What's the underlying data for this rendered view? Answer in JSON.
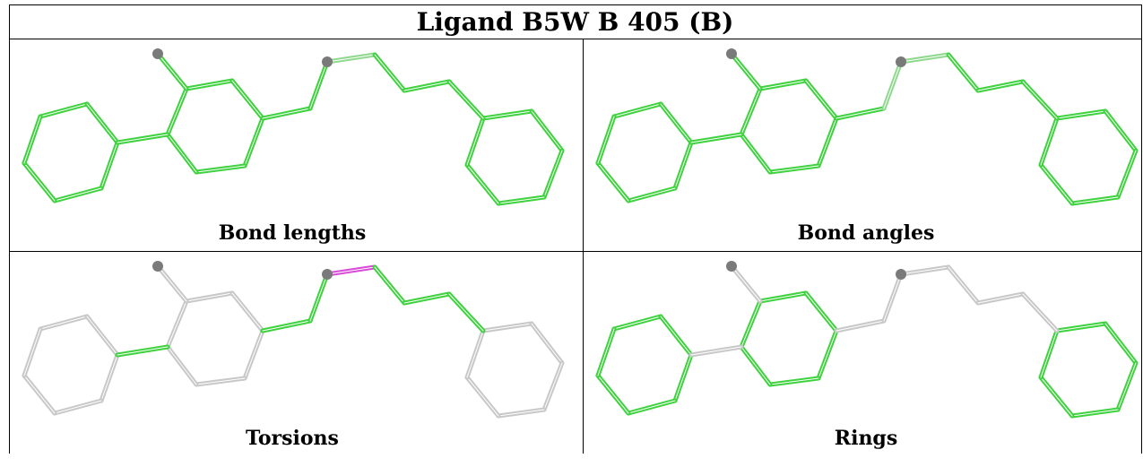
{
  "title": "Ligand B5W B 405 (B)",
  "panels": [
    {
      "caption": "Bond lengths"
    },
    {
      "caption": "Bond angles"
    },
    {
      "caption": "Torsions"
    },
    {
      "caption": "Rings"
    }
  ],
  "colors": {
    "green": "#3fd23f",
    "gray": "#c8c8c8",
    "magenta": "#d94ad9",
    "atom": "#7a7a7a"
  }
}
